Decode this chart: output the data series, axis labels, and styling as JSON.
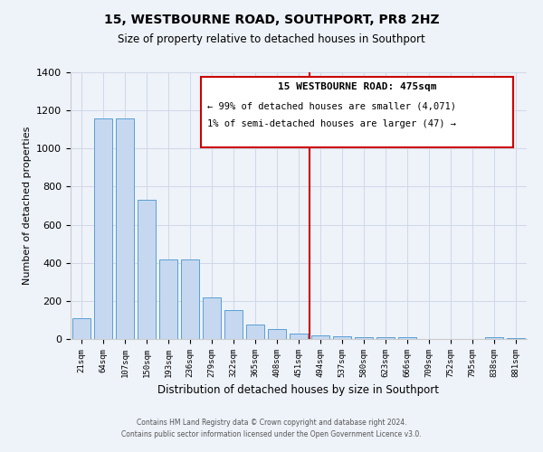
{
  "title": "15, WESTBOURNE ROAD, SOUTHPORT, PR8 2HZ",
  "subtitle": "Size of property relative to detached houses in Southport",
  "xlabel": "Distribution of detached houses by size in Southport",
  "ylabel": "Number of detached properties",
  "bar_labels": [
    "21sqm",
    "64sqm",
    "107sqm",
    "150sqm",
    "193sqm",
    "236sqm",
    "279sqm",
    "322sqm",
    "365sqm",
    "408sqm",
    "451sqm",
    "494sqm",
    "537sqm",
    "580sqm",
    "623sqm",
    "666sqm",
    "709sqm",
    "752sqm",
    "795sqm",
    "838sqm",
    "881sqm"
  ],
  "bar_values": [
    107,
    1160,
    1160,
    730,
    420,
    420,
    220,
    150,
    75,
    50,
    30,
    20,
    15,
    10,
    10,
    10,
    0,
    0,
    0,
    10,
    5
  ],
  "bar_color": "#c5d8f0",
  "bar_edge_color": "#5a9fd4",
  "vline_x": 10.5,
  "vline_color": "#cc0000",
  "ylim": [
    0,
    1400
  ],
  "yticks": [
    0,
    200,
    400,
    600,
    800,
    1000,
    1200,
    1400
  ],
  "annotation_title": "15 WESTBOURNE ROAD: 475sqm",
  "annotation_line1": "← 99% of detached houses are smaller (4,071)",
  "annotation_line2": "1% of semi-detached houses are larger (47) →",
  "footer_line1": "Contains HM Land Registry data © Crown copyright and database right 2024.",
  "footer_line2": "Contains public sector information licensed under the Open Government Licence v3.0.",
  "bg_color": "#eef2f9",
  "grid_color": "#d0d8e8"
}
